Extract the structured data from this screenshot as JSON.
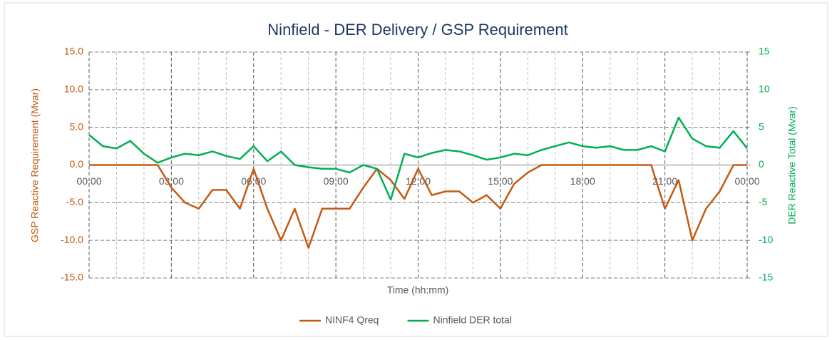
{
  "chart_data": {
    "type": "line",
    "title": "Ninfield - DER Delivery / GSP Requirement",
    "x_label": "Time (hh:mm)",
    "y_label": "GSP Reactive Requirement (Mvar)",
    "y2_label": "DER Reactive Total (Mvar)",
    "x": [
      0,
      0.5,
      1,
      1.5,
      2,
      2.5,
      3,
      3.5,
      4,
      4.5,
      5,
      5.5,
      6,
      6.5,
      7,
      7.5,
      8,
      8.5,
      9,
      9.5,
      10,
      10.5,
      11,
      11.5,
      12,
      12.5,
      13,
      13.5,
      14,
      14.5,
      15,
      15.5,
      16,
      16.5,
      17,
      17.5,
      18,
      18.5,
      19,
      19.5,
      20,
      20.5,
      21,
      21.5,
      22,
      22.5,
      23,
      23.5,
      24
    ],
    "xlim": [
      0,
      24
    ],
    "xticks": [
      {
        "value": 0,
        "label": "00:00"
      },
      {
        "value": 3,
        "label": "03:00"
      },
      {
        "value": 6,
        "label": "06:00"
      },
      {
        "value": 9,
        "label": "09:00"
      },
      {
        "value": 12,
        "label": "12:00"
      },
      {
        "value": 15,
        "label": "15:00"
      },
      {
        "value": 18,
        "label": "18:00"
      },
      {
        "value": 21,
        "label": "21:00"
      },
      {
        "value": 24,
        "label": "00:00"
      }
    ],
    "xminorticks": [
      1,
      2,
      4,
      5,
      7,
      8,
      10,
      11,
      13,
      14,
      16,
      17,
      19,
      20,
      22,
      23
    ],
    "ylim": [
      -15,
      15
    ],
    "yticks": [
      {
        "value": 15,
        "label": "15.0"
      },
      {
        "value": 10,
        "label": "10.0"
      },
      {
        "value": 5,
        "label": "5.0"
      },
      {
        "value": 0,
        "label": "0.0"
      },
      {
        "value": -5,
        "label": "-5.0"
      },
      {
        "value": -10,
        "label": "-10.0"
      },
      {
        "value": -15,
        "label": "-15.0"
      }
    ],
    "y2lim": [
      -15,
      15
    ],
    "y2ticks": [
      15,
      10,
      5,
      0,
      -5,
      -10,
      -15
    ],
    "grid": true,
    "legend": "bottom",
    "series": [
      {
        "name": "NINF4 Qreq",
        "color": "#c55a11",
        "values": [
          0,
          0,
          0,
          0,
          0,
          0,
          -3,
          -5,
          -5.8,
          -3.3,
          -3.3,
          -5.8,
          -0.5,
          -5.8,
          -10,
          -5.8,
          -11,
          -5.8,
          -5.8,
          -5.8,
          -3,
          -0.5,
          -2,
          -4.5,
          -0.5,
          -4,
          -3.5,
          -3.5,
          -5,
          -4,
          -5.8,
          -2.5,
          -1,
          0,
          0,
          0,
          0,
          0,
          0,
          0,
          0,
          0,
          -5.8,
          -2,
          -10,
          -5.8,
          -3.5,
          0,
          0
        ]
      },
      {
        "name": "Ninfield DER total",
        "color": "#00b050",
        "axis": "y2",
        "values": [
          4,
          2.5,
          2.2,
          3.2,
          1.5,
          0.3,
          1,
          1.5,
          1.3,
          1.8,
          1.2,
          0.8,
          2.5,
          0.5,
          1.8,
          0,
          -0.3,
          -0.5,
          -0.5,
          -1,
          0,
          -0.5,
          -4.6,
          1.5,
          1,
          1.6,
          2,
          1.8,
          1.3,
          0.7,
          1,
          1.5,
          1.3,
          2,
          2.5,
          3,
          2.5,
          2.3,
          2.5,
          2,
          2,
          2.5,
          1.8,
          6.3,
          3.5,
          2.5,
          2.3,
          4.5,
          2.2
        ]
      }
    ]
  }
}
